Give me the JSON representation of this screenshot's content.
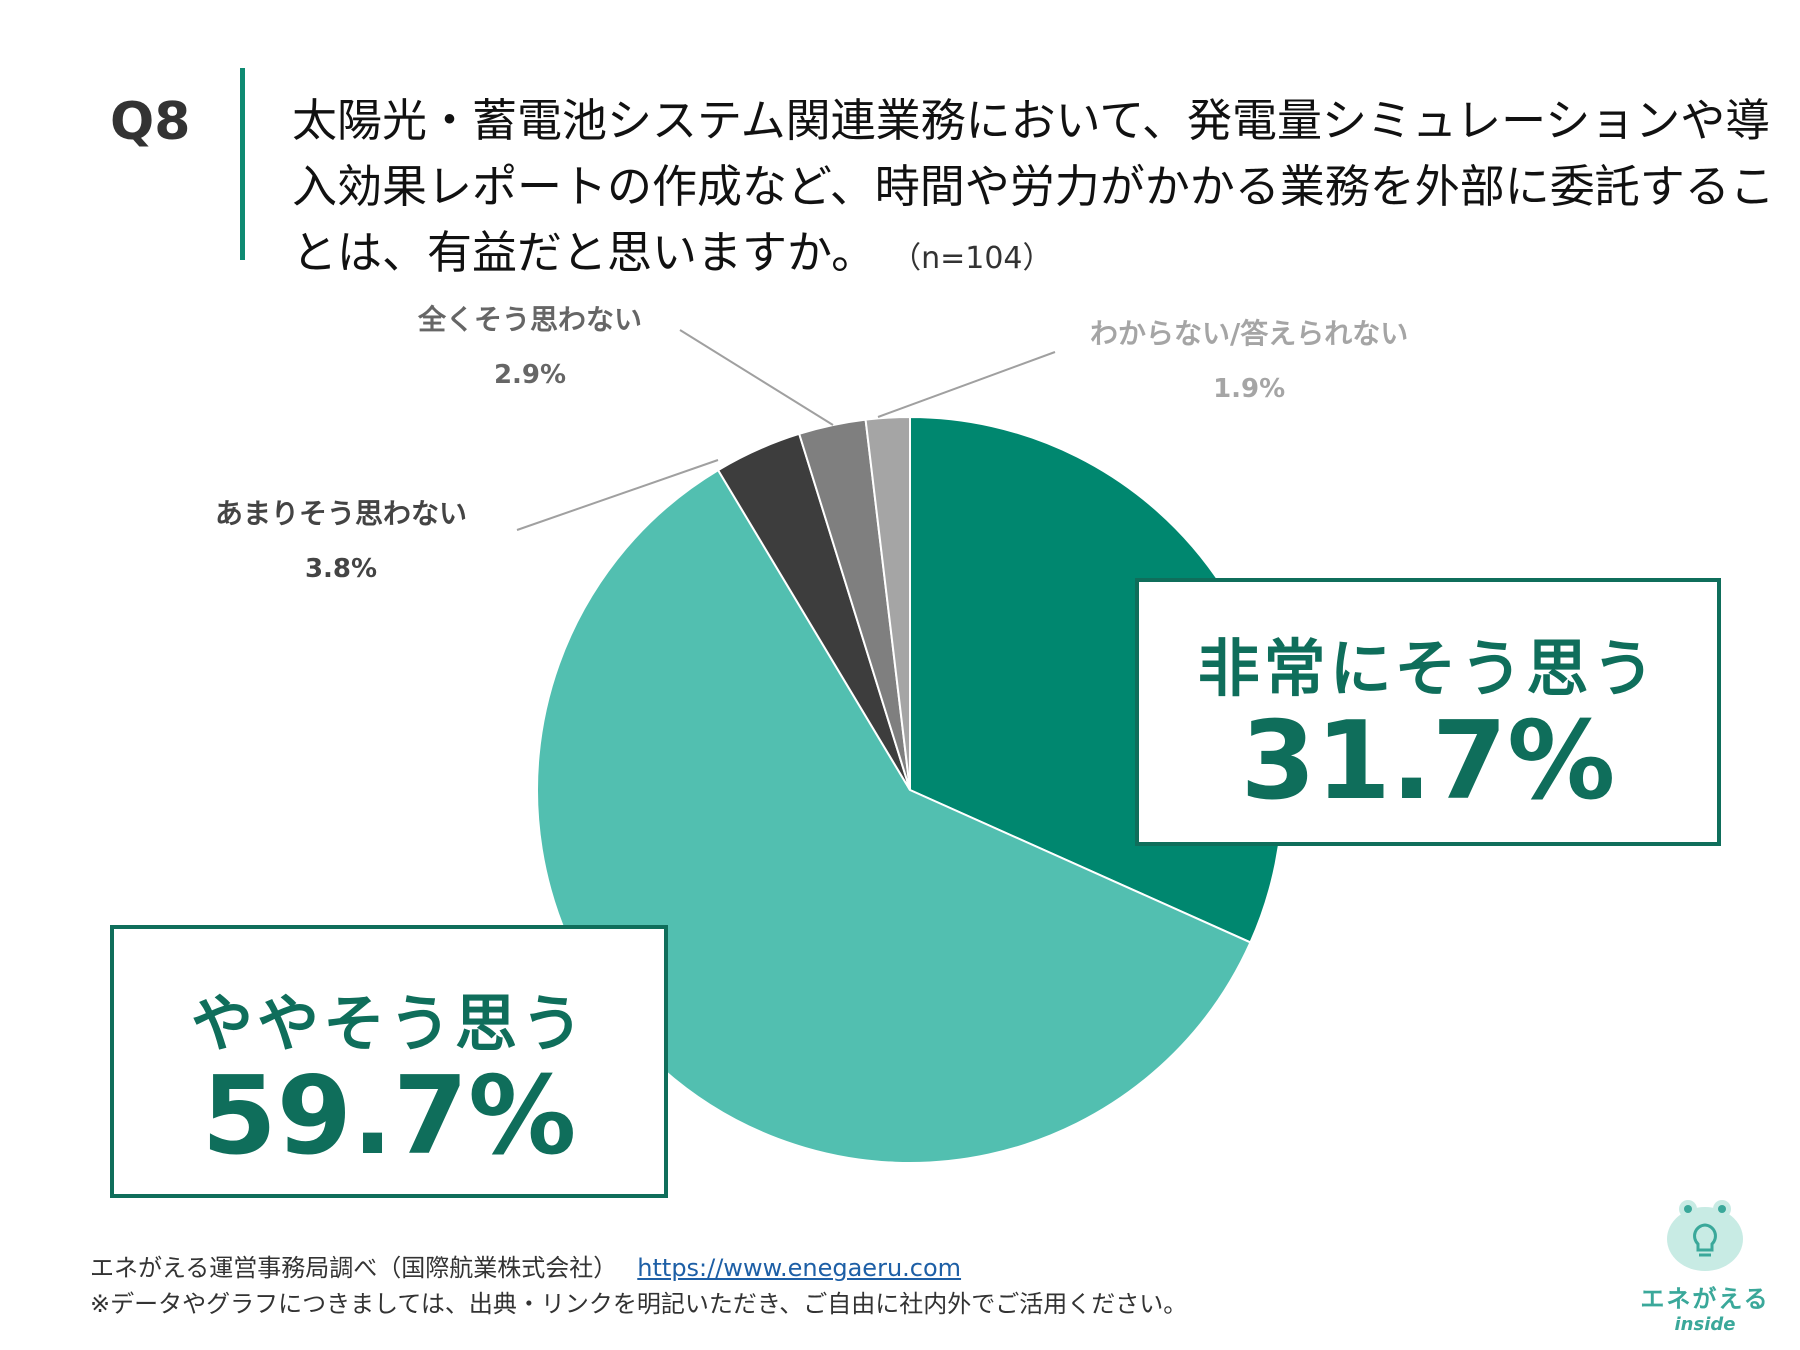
{
  "question": {
    "number": "Q8",
    "text": "太陽光・蓄電池システム関連業務において、発電量シミュレーションや導入効果レポートの作成など、時間や労力がかかる業務を外部に委託することは、有益だと思いますか。",
    "sample": "（n=104）"
  },
  "chart_data": {
    "type": "pie",
    "start_angle_deg": 0,
    "direction": "clockwise",
    "slices": [
      {
        "label": "非常にそう思う",
        "value": 31.7,
        "value_label": "31.7%",
        "color": "#00876f"
      },
      {
        "label": "ややそう思う",
        "value": 59.7,
        "value_label": "59.7%",
        "color": "#52bfb0"
      },
      {
        "label": "あまりそう思わない",
        "value": 3.8,
        "value_label": "3.8%",
        "color": "#3d3d3d"
      },
      {
        "label": "全くそう思わない",
        "value": 2.9,
        "value_label": "2.9%",
        "color": "#7f7f7f"
      },
      {
        "label": "わからない/答えられない",
        "value": 1.9,
        "value_label": "1.9%",
        "color": "#a5a5a5"
      }
    ]
  },
  "footer": {
    "source": "エネがえる運営事務局調べ（国際航業株式会社）",
    "url": "https://www.enegaeru.com",
    "note": "※データやグラフにつきましては、出典・リンクを明記いただき、ご自由に社内外でご活用ください。"
  },
  "logo": {
    "brand": "エネがえる",
    "sub": "inside"
  }
}
